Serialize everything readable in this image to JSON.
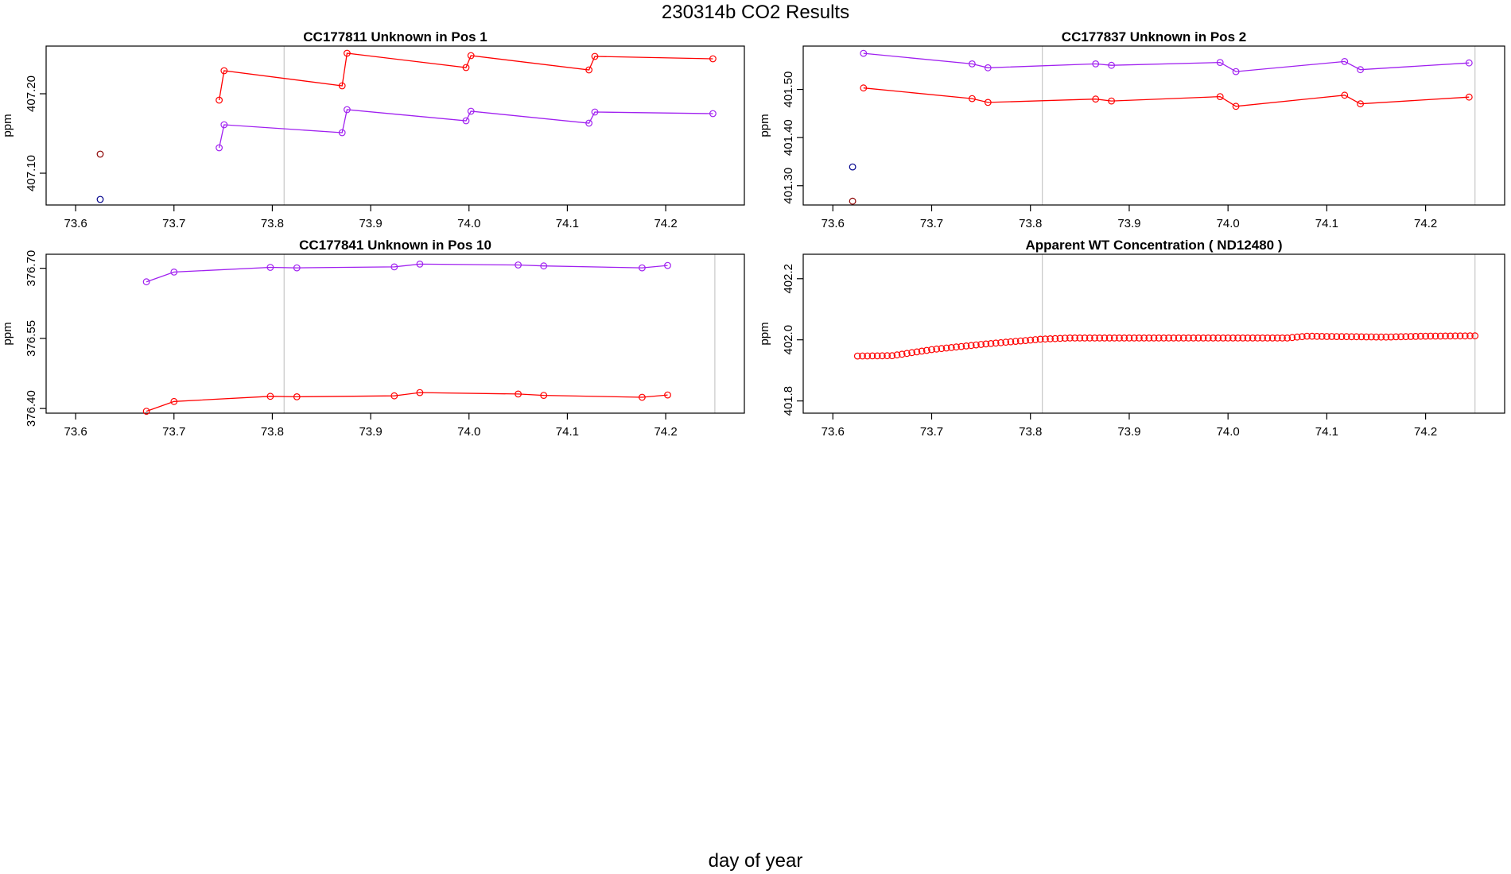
{
  "figure": {
    "title": "230314b  CO2 Results",
    "xlabel": "day of year"
  },
  "chart_data": [
    {
      "type": "line",
      "title": "CC177811    Unknown in Pos 1",
      "ylabel": "ppm",
      "xlim": [
        73.6,
        74.25
      ],
      "ylim": [
        407.06,
        407.26
      ],
      "xticks": [
        73.6,
        73.7,
        73.8,
        73.9,
        74.0,
        74.1,
        74.2
      ],
      "xtick_labels": [
        "73.6",
        "73.7",
        "73.8",
        "73.9",
        "74.0",
        "74.1",
        "74.2"
      ],
      "yticks": [
        407.1,
        407.2
      ],
      "ytick_labels": [
        "407.10",
        "407.20"
      ],
      "vlines": [
        73.812
      ],
      "grid": false,
      "series": [
        {
          "color": "#ff0000",
          "x": [
            73.746,
            73.751,
            73.871,
            73.876,
            73.997,
            74.002,
            74.122,
            74.128,
            74.248
          ],
          "y": [
            407.192,
            407.229,
            407.21,
            407.251,
            407.233,
            407.248,
            407.23,
            407.247,
            407.244
          ],
          "line": true
        },
        {
          "color": "#a020f0",
          "x": [
            73.746,
            73.751,
            73.871,
            73.876,
            73.997,
            74.002,
            74.122,
            74.128,
            74.248
          ],
          "y": [
            407.132,
            407.161,
            407.151,
            407.18,
            407.166,
            407.178,
            407.163,
            407.177,
            407.175
          ],
          "line": true
        },
        {
          "color": "#8b0000",
          "x": [
            73.625
          ],
          "y": [
            407.124
          ],
          "line": false
        },
        {
          "color": "#00008b",
          "x": [
            73.625
          ],
          "y": [
            407.067
          ],
          "line": false
        }
      ]
    },
    {
      "type": "line",
      "title": "CC177837    Unknown in Pos 2",
      "ylabel": "ppm",
      "xlim": [
        73.6,
        74.25
      ],
      "ylim": [
        401.26,
        401.59
      ],
      "xticks": [
        73.6,
        73.7,
        73.8,
        73.9,
        74.0,
        74.1,
        74.2
      ],
      "xtick_labels": [
        "73.6",
        "73.7",
        "73.8",
        "73.9",
        "74.0",
        "74.1",
        "74.2"
      ],
      "yticks": [
        401.3,
        401.4,
        401.5
      ],
      "ytick_labels": [
        "401.30",
        "401.40",
        "401.50"
      ],
      "vlines": [
        73.812,
        74.25
      ],
      "grid": false,
      "series": [
        {
          "color": "#a020f0",
          "x": [
            73.631,
            73.741,
            73.757,
            73.866,
            73.882,
            73.992,
            74.008,
            74.118,
            74.134,
            74.244
          ],
          "y": [
            401.575,
            401.553,
            401.545,
            401.553,
            401.55,
            401.556,
            401.537,
            401.558,
            401.541,
            401.555
          ],
          "line": true
        },
        {
          "color": "#ff0000",
          "x": [
            73.631,
            73.741,
            73.757,
            73.866,
            73.882,
            73.992,
            74.008,
            74.118,
            74.134,
            74.244
          ],
          "y": [
            401.503,
            401.481,
            401.473,
            401.48,
            401.476,
            401.485,
            401.465,
            401.488,
            401.47,
            401.484
          ],
          "line": true
        },
        {
          "color": "#00008b",
          "x": [
            73.62
          ],
          "y": [
            401.339
          ],
          "line": false
        },
        {
          "color": "#8b0000",
          "x": [
            73.62
          ],
          "y": [
            401.268
          ],
          "line": false
        }
      ]
    },
    {
      "type": "line",
      "title": "CC177841    Unknown in Pos 10",
      "ylabel": "ppm",
      "xlim": [
        73.6,
        74.25
      ],
      "ylim": [
        376.39,
        376.73
      ],
      "xticks": [
        73.6,
        73.7,
        73.8,
        73.9,
        74.0,
        74.1,
        74.2
      ],
      "xtick_labels": [
        "73.6",
        "73.7",
        "73.8",
        "73.9",
        "74.0",
        "74.1",
        "74.2"
      ],
      "yticks": [
        376.4,
        376.55,
        376.7
      ],
      "ytick_labels": [
        "376.40",
        "376.55",
        "376.70"
      ],
      "vlines": [
        73.812,
        74.25
      ],
      "grid": false,
      "series": [
        {
          "color": "#a020f0",
          "x": [
            73.672,
            73.7,
            73.798,
            73.825,
            73.924,
            73.95,
            74.05,
            74.076,
            74.176,
            74.202
          ],
          "y": [
            376.671,
            376.692,
            376.702,
            376.701,
            376.703,
            376.709,
            376.707,
            376.705,
            376.701,
            376.706
          ],
          "line": true
        },
        {
          "color": "#ff0000",
          "x": [
            73.672,
            73.7,
            73.798,
            73.825,
            73.924,
            73.95,
            74.05,
            74.076,
            74.176,
            74.202
          ],
          "y": [
            376.394,
            376.415,
            376.426,
            376.425,
            376.427,
            376.434,
            376.431,
            376.428,
            376.424,
            376.429
          ],
          "line": true
        }
      ]
    },
    {
      "type": "scatter",
      "title": "Apparent WT Concentration ( ND12480 )",
      "ylabel": "ppm",
      "xlim": [
        73.6,
        74.25
      ],
      "ylim": [
        401.76,
        402.28
      ],
      "xticks": [
        73.6,
        73.7,
        73.8,
        73.9,
        74.0,
        74.1,
        74.2
      ],
      "xtick_labels": [
        "73.6",
        "73.7",
        "73.8",
        "73.9",
        "74.0",
        "74.1",
        "74.2"
      ],
      "yticks": [
        401.8,
        402.0,
        402.2
      ],
      "ytick_labels": [
        "401.8",
        "402.0",
        "402.2"
      ],
      "vlines": [
        73.812,
        74.25
      ],
      "grid": false,
      "series": [
        {
          "color": "#ff0000",
          "line": false,
          "x_start": 73.625,
          "x_end": 74.25,
          "count": 126,
          "y_profile": [
            [
              73.625,
              401.947
            ],
            [
              73.66,
              401.948
            ],
            [
              73.7,
              401.968
            ],
            [
              73.75,
              401.985
            ],
            [
              73.81,
              402.002
            ],
            [
              73.84,
              402.006
            ],
            [
              74.06,
              402.006
            ],
            [
              74.08,
              402.012
            ],
            [
              74.1,
              402.011
            ],
            [
              74.16,
              402.009
            ],
            [
              74.2,
              402.012
            ],
            [
              74.25,
              402.013
            ]
          ]
        }
      ]
    }
  ]
}
